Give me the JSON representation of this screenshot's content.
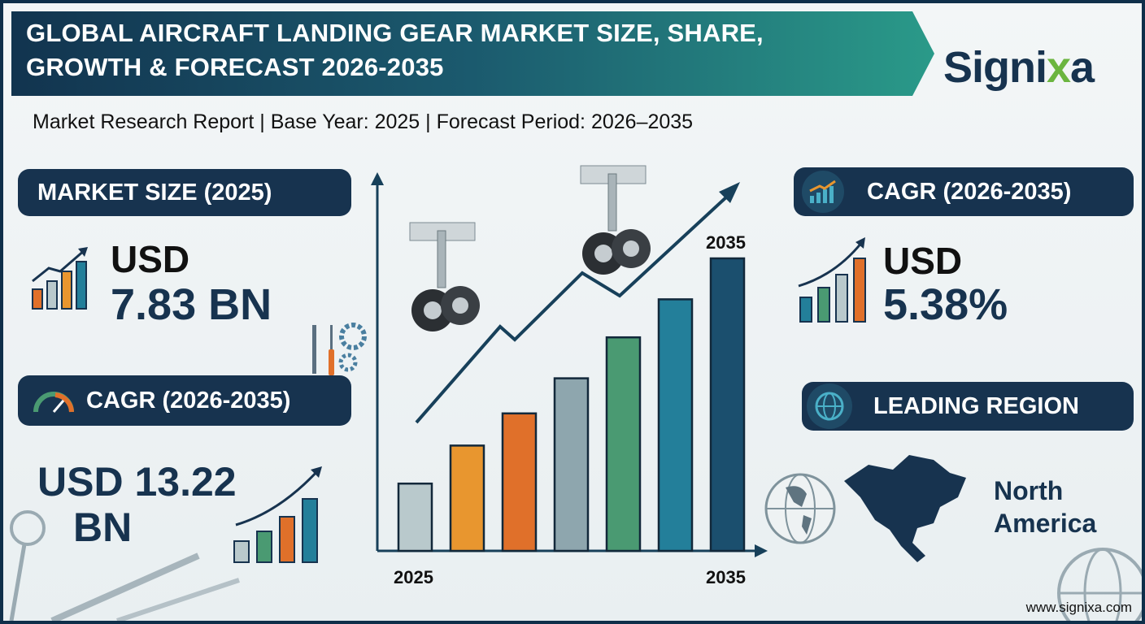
{
  "header": {
    "title_line1": "GLOBAL AIRCRAFT LANDING GEAR MARKET SIZE, SHARE,",
    "title_line2": "GROWTH & FORECAST 2026-2035",
    "subtitle": "Market Research Report | Base Year: 2025 | Forecast Period: 2026–2035",
    "logo": "Signixa"
  },
  "left": {
    "market_size": {
      "label": "MARKET SIZE (2025)",
      "currency": "USD",
      "value": "7.83 BN",
      "icon": "growth-bar-chart-icon"
    },
    "cagr": {
      "label": "CAGR (2026-2035)",
      "value_line1": "USD 13.22",
      "value_line2": "BN",
      "icon": "gauge-icon"
    },
    "tools_icon": "wrench-screwdriver-gear-icon"
  },
  "right": {
    "cagr": {
      "label": "CAGR (2026-2035)",
      "currency": "USD",
      "value": "5.38%",
      "icon": "growth-chart-icon"
    },
    "region": {
      "label": "LEADING REGION",
      "value_line1": "North",
      "value_line2": "America",
      "icon": "globe-icon"
    }
  },
  "chart_data": {
    "type": "bar",
    "x_start_label": "2025",
    "x_end_label": "2035",
    "top_label": "2035",
    "relative_values": [
      0.23,
      0.36,
      0.47,
      0.59,
      0.73,
      0.86,
      1.0
    ],
    "bar_colors": [
      "#b9c9cc",
      "#e8962f",
      "#e0702a",
      "#8ea6ae",
      "#4a9a72",
      "#237f9a",
      "#1b4f6e"
    ],
    "trend_color": "#17405a",
    "decor": "landing-gear-illustration"
  },
  "footer": {
    "website": "www.signixa.com"
  },
  "colors": {
    "navy": "#17334f",
    "teal": "#2a9a89",
    "frame": "#0f2f4a",
    "accent_green": "#6bb53f"
  }
}
